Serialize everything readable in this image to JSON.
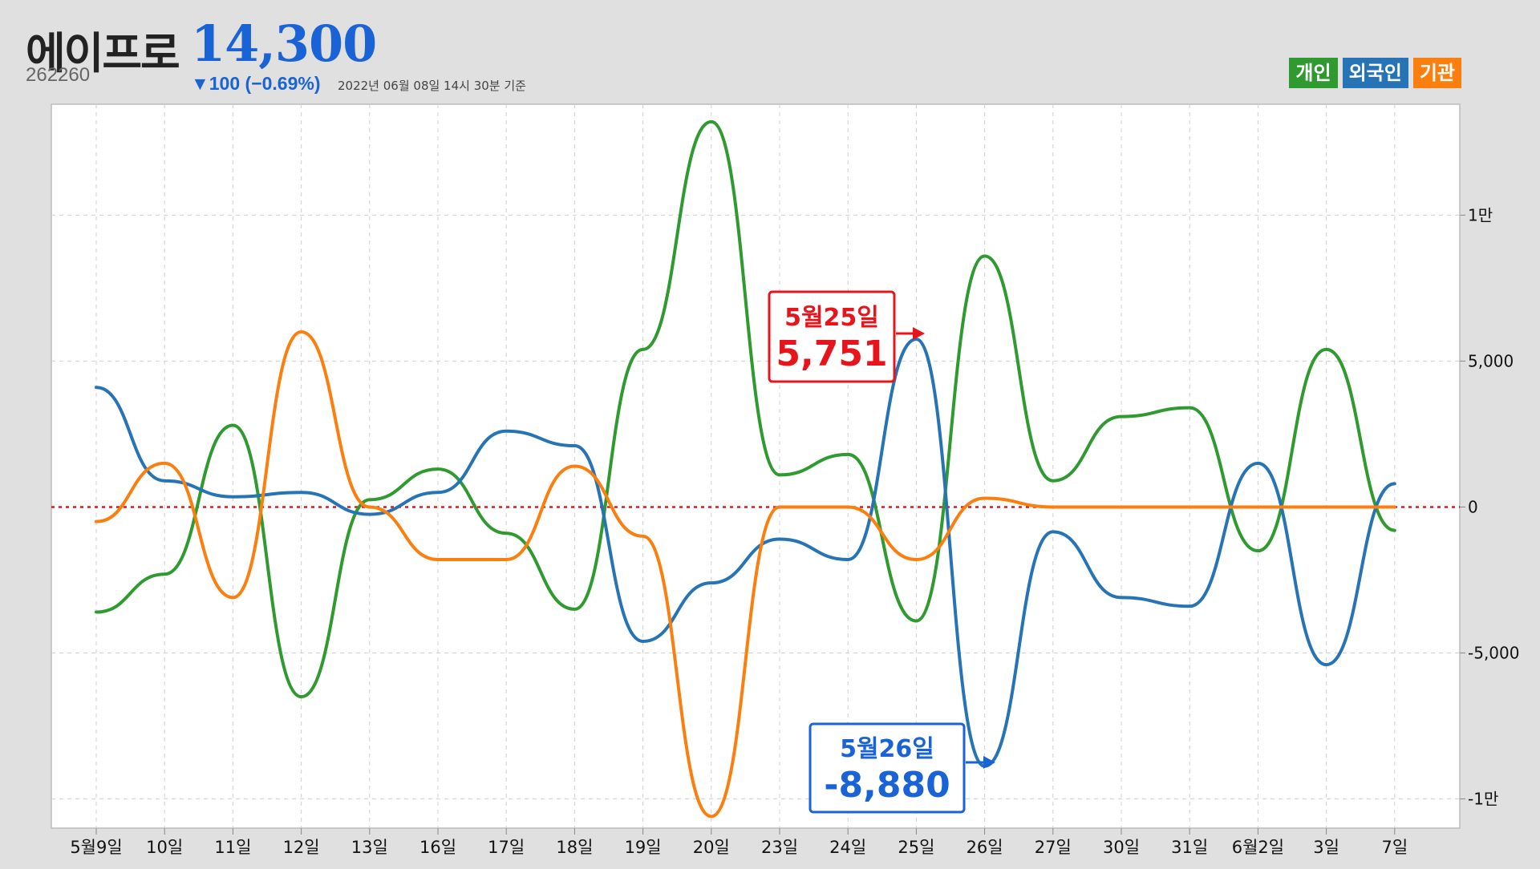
{
  "header": {
    "name": "에이프로",
    "code": "262260",
    "price": "14,300",
    "change": "▼100 (−0.69%)",
    "timestamp": "2022년 06월 08일 14시 30분 기준"
  },
  "legend": [
    {
      "label": "개인",
      "color": "#2f9a2f"
    },
    {
      "label": "외국인",
      "color": "#2673b5"
    },
    {
      "label": "기관",
      "color": "#fb7f0f"
    }
  ],
  "callouts": [
    {
      "date": "5월25일",
      "value": "5,751",
      "color": "#e8141c"
    },
    {
      "date": "5월26일",
      "value": "-8,880",
      "color": "#1a63d6"
    }
  ],
  "chart_data": {
    "type": "line",
    "categories": [
      "5월9일",
      "10일",
      "11일",
      "12일",
      "13일",
      "16일",
      "17일",
      "18일",
      "19일",
      "20일",
      "23일",
      "24일",
      "25일",
      "26일",
      "27일",
      "30일",
      "31일",
      "6월2일",
      "3일",
      "7일"
    ],
    "series": [
      {
        "name": "개인",
        "color": "#2f9a2f",
        "values": [
          -3600,
          -2300,
          2800,
          -6500,
          250,
          1300,
          -900,
          -3500,
          5400,
          13200,
          1100,
          1800,
          -3900,
          8600,
          900,
          3100,
          3400,
          -1500,
          5400,
          -800
        ]
      },
      {
        "name": "외국인",
        "color": "#2673b5",
        "values": [
          4100,
          900,
          350,
          500,
          -250,
          500,
          2600,
          2100,
          -4600,
          -2600,
          -1100,
          -1800,
          5751,
          -8880,
          -850,
          -3100,
          -3400,
          1500,
          -5400,
          800
        ]
      },
      {
        "name": "기관",
        "color": "#fb7f0f",
        "values": [
          -500,
          1500,
          -3100,
          6000,
          0,
          -1800,
          -1800,
          1400,
          -1000,
          -10600,
          0,
          0,
          -1800,
          300,
          0,
          0,
          0,
          0,
          0,
          0
        ]
      }
    ],
    "yticks": [
      {
        "value": 10000,
        "label": "1만"
      },
      {
        "value": 5000,
        "label": "5,000"
      },
      {
        "value": 0,
        "label": "0"
      },
      {
        "value": -5000,
        "label": "-5,000"
      },
      {
        "value": -10000,
        "label": "-1만"
      }
    ],
    "ylim": [
      -11000,
      13800
    ],
    "zero_line_color": "#e8141c",
    "grid": true
  }
}
